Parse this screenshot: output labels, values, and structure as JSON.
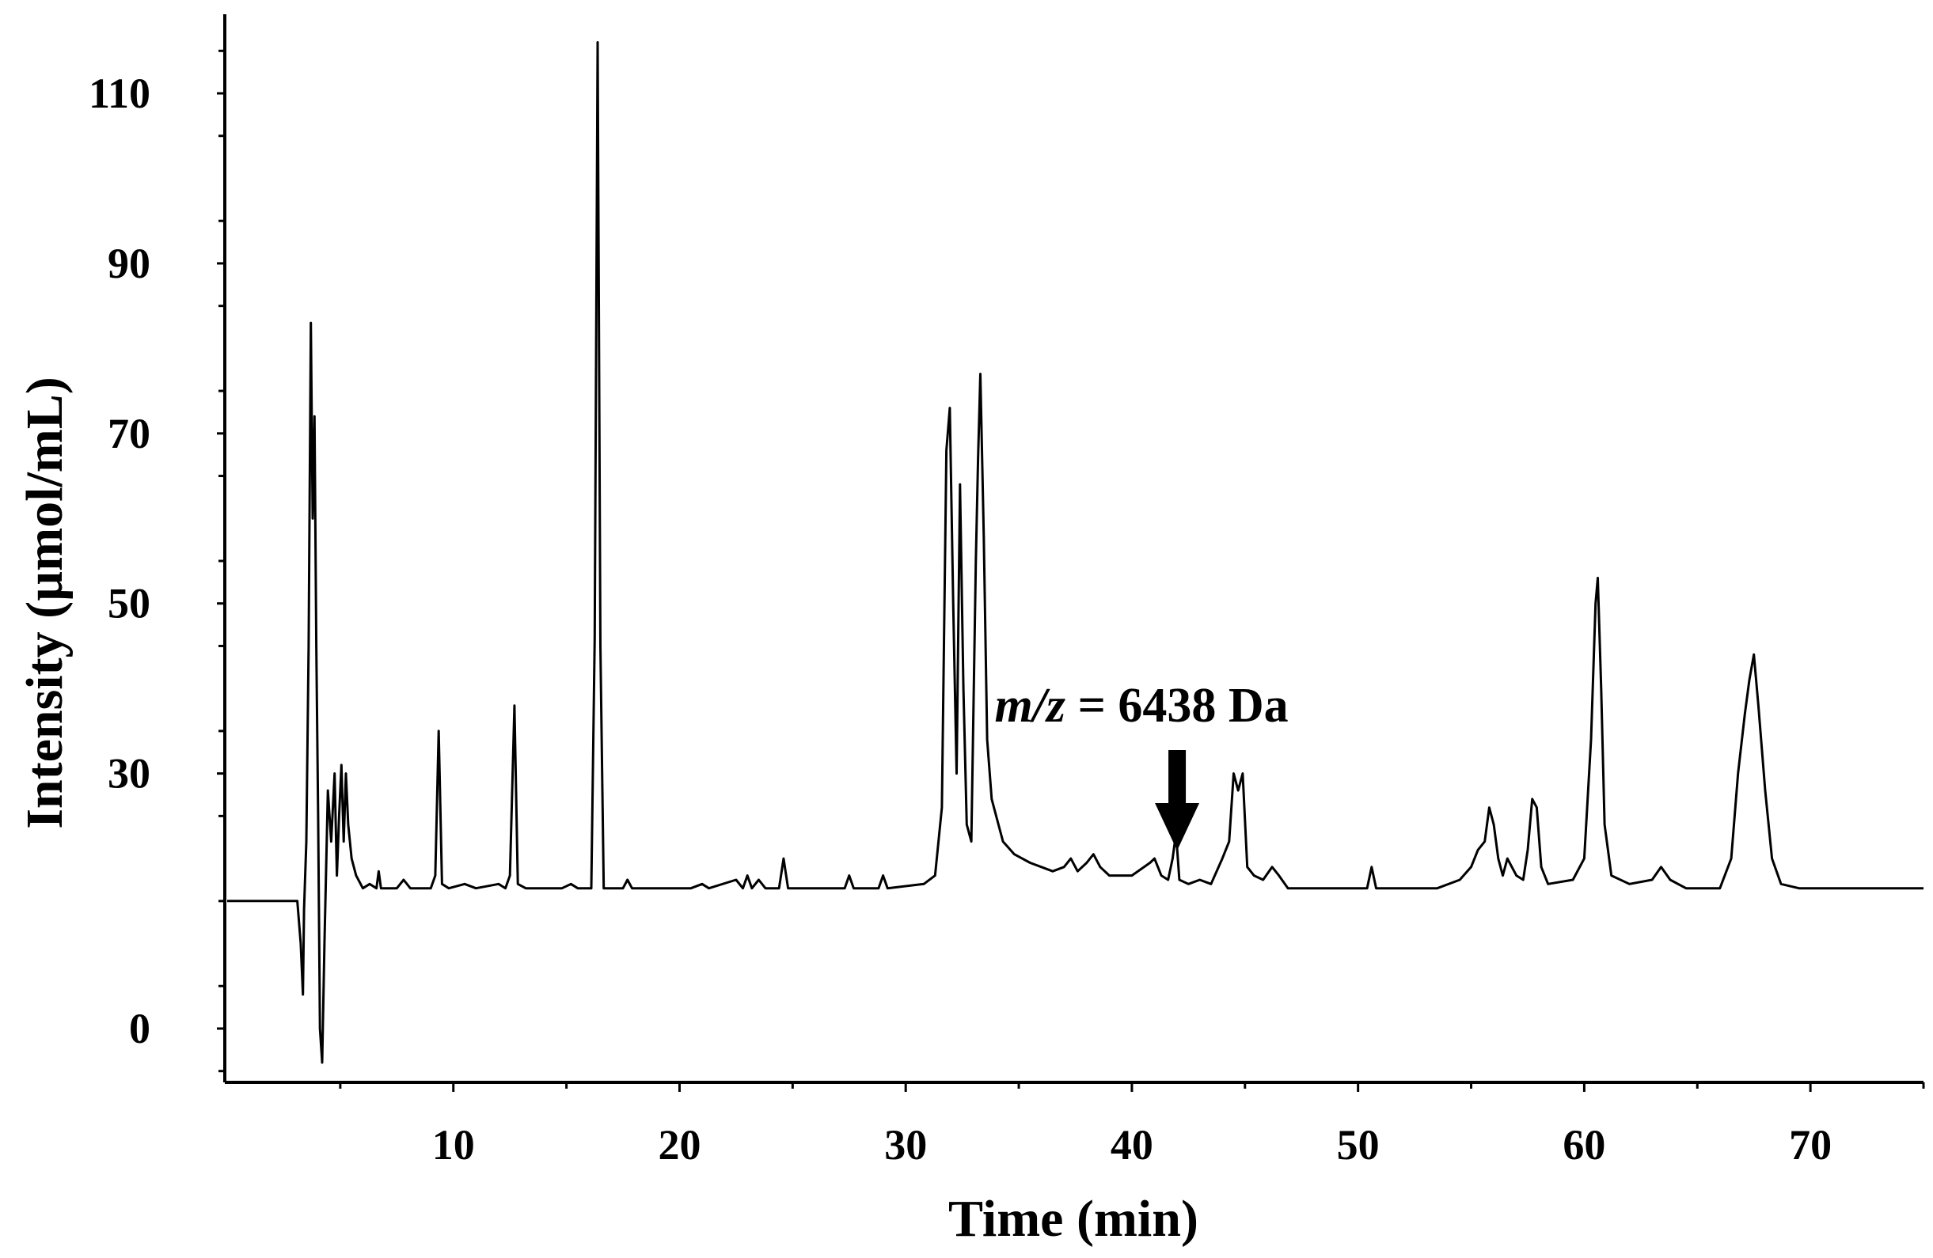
{
  "chart_data": {
    "type": "line",
    "title": "",
    "xlabel": "Time (min)",
    "ylabel": "Intensity (µmol/mL)",
    "xlim": [
      0,
      75
    ],
    "ylim": [
      -6,
      118
    ],
    "x_ticks": [
      10,
      20,
      30,
      40,
      50,
      60,
      70
    ],
    "x_tick_labels": [
      "10",
      "20",
      "30",
      "40",
      "50",
      "60",
      "70"
    ],
    "y_ticks": [
      0,
      30,
      50,
      70,
      90,
      110
    ],
    "y_tick_labels": [
      "0",
      "30",
      "50",
      "70",
      "90",
      "110"
    ],
    "grid": false,
    "legend": "none",
    "annotations": [
      {
        "text_italic": "m/z",
        "text": " = 6438 Da",
        "x": 42.0,
        "y": 26
      }
    ],
    "series": [
      {
        "color": "#000000",
        "points": [
          [
            0,
            15
          ],
          [
            3.1,
            15
          ],
          [
            3.25,
            10
          ],
          [
            3.35,
            4
          ],
          [
            3.4,
            14
          ],
          [
            3.5,
            22
          ],
          [
            3.6,
            45
          ],
          [
            3.7,
            83
          ],
          [
            3.78,
            60
          ],
          [
            3.86,
            72
          ],
          [
            3.94,
            45
          ],
          [
            4.02,
            25
          ],
          [
            4.1,
            0
          ],
          [
            4.2,
            -4
          ],
          [
            4.3,
            10
          ],
          [
            4.45,
            28
          ],
          [
            4.6,
            22
          ],
          [
            4.75,
            30
          ],
          [
            4.85,
            18
          ],
          [
            4.95,
            25
          ],
          [
            5.05,
            31
          ],
          [
            5.15,
            22
          ],
          [
            5.25,
            30
          ],
          [
            5.35,
            24
          ],
          [
            5.5,
            20
          ],
          [
            5.7,
            18
          ],
          [
            6.0,
            16.5
          ],
          [
            6.3,
            17
          ],
          [
            6.6,
            16.5
          ],
          [
            6.7,
            18.5
          ],
          [
            6.8,
            16.5
          ],
          [
            7.5,
            16.5
          ],
          [
            7.8,
            17.5
          ],
          [
            8.1,
            16.5
          ],
          [
            9.0,
            16.5
          ],
          [
            9.2,
            18
          ],
          [
            9.35,
            35
          ],
          [
            9.5,
            17
          ],
          [
            9.8,
            16.5
          ],
          [
            10.5,
            17
          ],
          [
            11.0,
            16.5
          ],
          [
            12.0,
            17
          ],
          [
            12.3,
            16.5
          ],
          [
            12.5,
            18
          ],
          [
            12.7,
            38
          ],
          [
            12.85,
            17
          ],
          [
            13.2,
            16.5
          ],
          [
            14.8,
            16.5
          ],
          [
            15.2,
            17
          ],
          [
            15.5,
            16.5
          ],
          [
            16.1,
            16.5
          ],
          [
            16.25,
            46
          ],
          [
            16.38,
            116
          ],
          [
            16.5,
            45
          ],
          [
            16.65,
            16.5
          ],
          [
            17.5,
            16.5
          ],
          [
            17.7,
            17.5
          ],
          [
            17.9,
            16.5
          ],
          [
            20.5,
            16.5
          ],
          [
            21.0,
            17
          ],
          [
            21.3,
            16.5
          ],
          [
            22.5,
            17.5
          ],
          [
            22.8,
            16.5
          ],
          [
            23.0,
            18
          ],
          [
            23.2,
            16.5
          ],
          [
            23.5,
            17.5
          ],
          [
            23.8,
            16.5
          ],
          [
            24.4,
            16.5
          ],
          [
            24.6,
            20
          ],
          [
            24.8,
            16.5
          ],
          [
            27.3,
            16.5
          ],
          [
            27.5,
            18
          ],
          [
            27.7,
            16.5
          ],
          [
            28.8,
            16.5
          ],
          [
            29.0,
            18
          ],
          [
            29.2,
            16.5
          ],
          [
            30.8,
            17
          ],
          [
            31.3,
            18
          ],
          [
            31.6,
            26
          ],
          [
            31.8,
            68
          ],
          [
            31.95,
            73
          ],
          [
            32.1,
            50
          ],
          [
            32.25,
            30
          ],
          [
            32.4,
            64
          ],
          [
            32.55,
            40
          ],
          [
            32.7,
            24
          ],
          [
            32.9,
            22
          ],
          [
            33.1,
            55
          ],
          [
            33.2,
            67
          ],
          [
            33.3,
            77
          ],
          [
            33.45,
            58
          ],
          [
            33.6,
            34
          ],
          [
            33.8,
            27
          ],
          [
            34.0,
            25
          ],
          [
            34.3,
            22
          ],
          [
            34.8,
            20.5
          ],
          [
            35.5,
            19.5
          ],
          [
            36.0,
            19
          ],
          [
            36.5,
            18.5
          ],
          [
            37.0,
            19
          ],
          [
            37.3,
            20
          ],
          [
            37.6,
            18.5
          ],
          [
            38.0,
            19.5
          ],
          [
            38.3,
            20.5
          ],
          [
            38.6,
            19
          ],
          [
            39.0,
            18
          ],
          [
            40.0,
            18
          ],
          [
            40.8,
            19.5
          ],
          [
            41.0,
            20
          ],
          [
            41.3,
            18
          ],
          [
            41.6,
            17.5
          ],
          [
            41.8,
            20
          ],
          [
            41.95,
            23
          ],
          [
            42.1,
            17.5
          ],
          [
            42.5,
            17
          ],
          [
            43.0,
            17.5
          ],
          [
            43.5,
            17
          ],
          [
            44.0,
            20
          ],
          [
            44.3,
            22
          ],
          [
            44.5,
            30
          ],
          [
            44.7,
            28
          ],
          [
            44.9,
            30
          ],
          [
            45.1,
            19
          ],
          [
            45.4,
            18
          ],
          [
            45.8,
            17.5
          ],
          [
            46.2,
            19
          ],
          [
            46.5,
            18
          ],
          [
            46.9,
            16.5
          ],
          [
            50.4,
            16.5
          ],
          [
            50.6,
            19
          ],
          [
            50.8,
            16.5
          ],
          [
            53.5,
            16.5
          ],
          [
            54.5,
            17.5
          ],
          [
            55.0,
            19
          ],
          [
            55.3,
            21
          ],
          [
            55.6,
            22
          ],
          [
            55.8,
            26
          ],
          [
            56.0,
            24
          ],
          [
            56.2,
            20
          ],
          [
            56.4,
            18
          ],
          [
            56.6,
            20
          ],
          [
            57.0,
            18
          ],
          [
            57.3,
            17.5
          ],
          [
            57.5,
            21
          ],
          [
            57.7,
            27
          ],
          [
            57.9,
            26
          ],
          [
            58.1,
            19
          ],
          [
            58.4,
            17
          ],
          [
            59.5,
            17.5
          ],
          [
            60.0,
            20
          ],
          [
            60.3,
            34
          ],
          [
            60.5,
            50
          ],
          [
            60.6,
            53
          ],
          [
            60.75,
            40
          ],
          [
            60.9,
            24
          ],
          [
            61.2,
            18
          ],
          [
            62.0,
            17
          ],
          [
            63.0,
            17.5
          ],
          [
            63.4,
            19
          ],
          [
            63.8,
            17.5
          ],
          [
            64.5,
            16.5
          ],
          [
            66.0,
            16.5
          ],
          [
            66.5,
            20
          ],
          [
            66.8,
            30
          ],
          [
            67.1,
            37
          ],
          [
            67.3,
            41
          ],
          [
            67.5,
            44
          ],
          [
            67.7,
            38
          ],
          [
            68.0,
            28
          ],
          [
            68.3,
            20
          ],
          [
            68.7,
            17
          ],
          [
            69.5,
            16.5
          ],
          [
            75.0,
            16.5
          ]
        ]
      }
    ]
  }
}
